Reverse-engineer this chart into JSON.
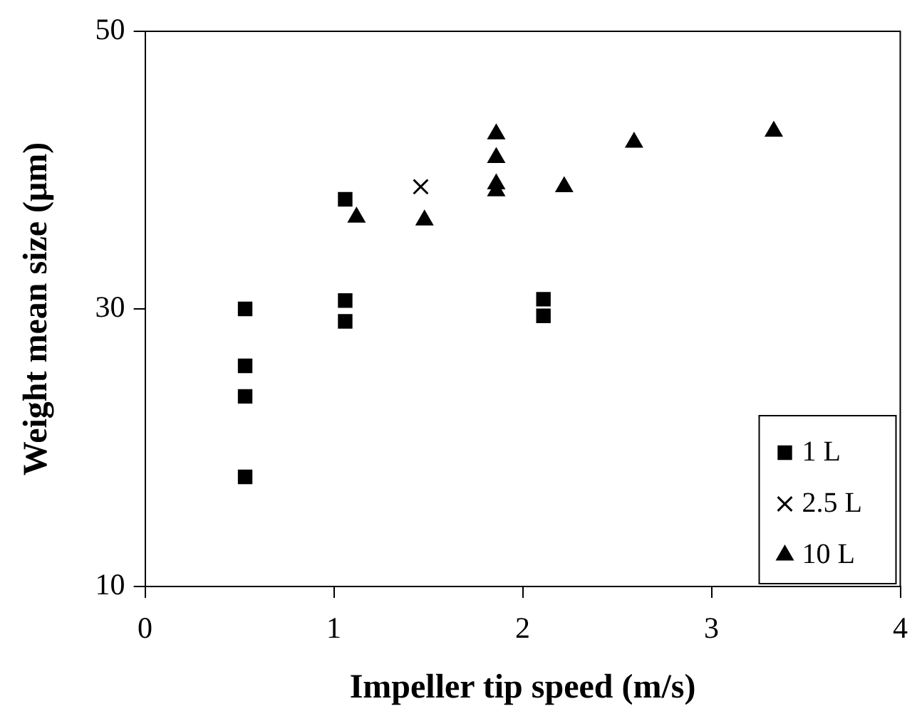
{
  "chart_data": {
    "type": "scatter",
    "xlabel": "Impeller tip speed (m/s)",
    "ylabel": "Weight mean size (μm)",
    "xlim": [
      0,
      4
    ],
    "xticks": [
      0,
      1,
      2,
      3,
      4
    ],
    "ylim": [
      10,
      50
    ],
    "yticks": [
      10,
      30,
      50
    ],
    "grid": false,
    "legend": "bottom right",
    "series": [
      {
        "name": "1 L",
        "color": "#000000",
        "marker": "square",
        "x": [
          0.53,
          0.53,
          0.53,
          0.53,
          1.06,
          1.06,
          1.06,
          2.11,
          2.11
        ],
        "values": [
          30,
          25.9,
          23.7,
          17.9,
          37.9,
          30.6,
          29.1,
          30.7,
          29.5
        ]
      },
      {
        "name": "2.5 L",
        "color": "#000000",
        "marker": "cross",
        "x": [
          1.46
        ],
        "values": [
          38.8
        ]
      },
      {
        "name": "10 L",
        "color": "#000000",
        "marker": "triangle",
        "x": [
          1.12,
          1.48,
          1.86,
          1.86,
          1.86,
          1.86,
          2.22,
          2.59,
          3.33
        ],
        "values": [
          36.6,
          36.4,
          42.6,
          40.9,
          39.0,
          38.5,
          38.8,
          42.0,
          42.8
        ]
      }
    ]
  }
}
